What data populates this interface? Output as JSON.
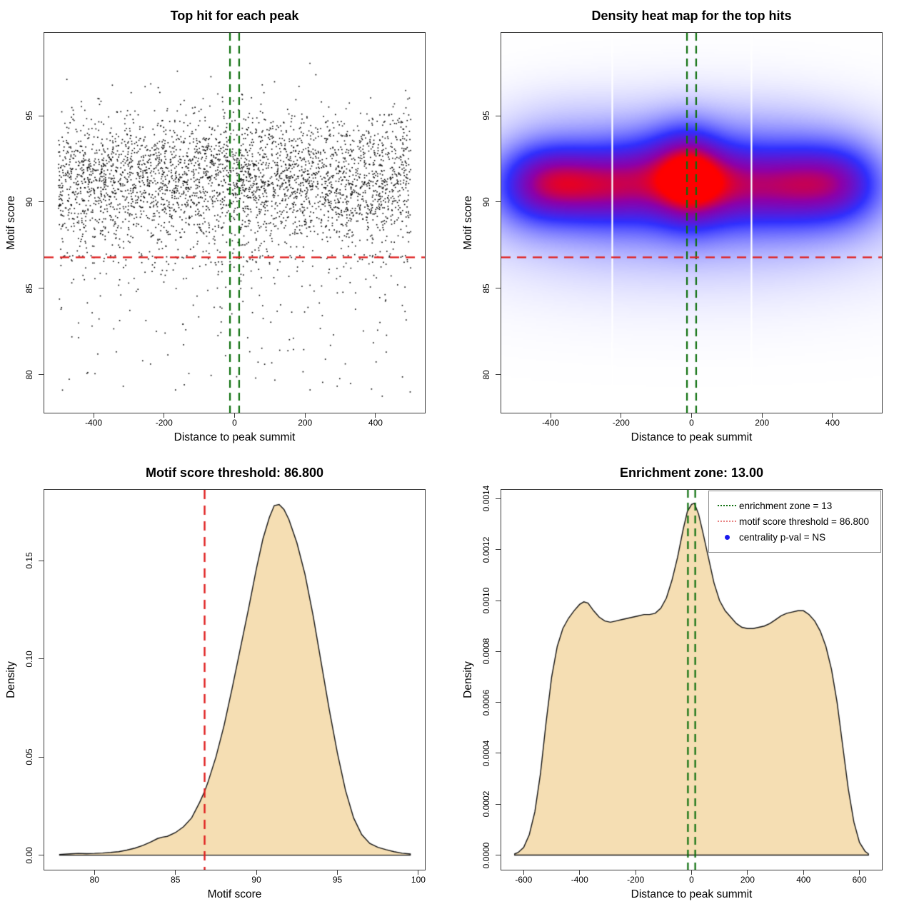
{
  "palette": {
    "background": "#ffffff",
    "box": "#3c3c3c",
    "curve_fill": "#f5deb3",
    "curve_stroke": "#141414",
    "point_color": "#000000",
    "red_line": "#e02020",
    "green_line": "#0b6e0b",
    "heat_white_line": "#ffffff"
  },
  "chart_data": [
    {
      "type": "scatter",
      "title": "Top hit for each peak",
      "xlabel": "Distance to peak summit",
      "ylabel": "Motif score",
      "xlim": [
        -540,
        540
      ],
      "ylim": [
        77.8,
        99.8
      ],
      "xticks": [
        -400,
        -200,
        0,
        200,
        400
      ],
      "xtick_labels": [
        "-400",
        "-200",
        "0",
        "200",
        "400"
      ],
      "yticks": [
        80,
        85,
        90,
        95
      ],
      "ytick_labels": [
        "80",
        "85",
        "90",
        "95"
      ],
      "threshold_line": {
        "y": 86.8
      },
      "enrichment_lines": {
        "x": [
          -13,
          13
        ]
      },
      "points_model": {
        "n": 3800,
        "seed": 7,
        "x_min": -500,
        "x_max": 500,
        "y_mean": 91.25,
        "y_sd": 1.95,
        "y_max": 99.0,
        "y_min": 78.6,
        "tail_frac": 0.065,
        "tail_top": 86.9,
        "tail_span": 8.2,
        "tail_power": 2.2
      }
    },
    {
      "type": "heatmap",
      "title": "Density heat map for the top hits",
      "xlabel": "Distance to peak summit",
      "ylabel": "Motif score",
      "xlim": [
        -540,
        540
      ],
      "ylim": [
        77.8,
        99.8
      ],
      "xticks": [
        -400,
        -200,
        0,
        200,
        400
      ],
      "xtick_labels": [
        "-400",
        "-200",
        "0",
        "200",
        "400"
      ],
      "yticks": [
        80,
        85,
        90,
        95
      ],
      "ytick_labels": [
        "80",
        "85",
        "90",
        "95"
      ],
      "threshold_line": {
        "y": 86.8
      },
      "enrichment_lines": {
        "x": [
          -13,
          13
        ]
      },
      "white_columns": [
        -225,
        170
      ],
      "colormap": [
        [
          0,
          "#ffffff"
        ],
        [
          0.38,
          "#3030ff"
        ],
        [
          0.62,
          "#8e00a8"
        ],
        [
          0.8,
          "#ff0000"
        ],
        [
          1,
          "#ff0000"
        ]
      ],
      "density_model": {
        "blobs": [
          [
            -470,
            91.0,
            80,
            1.6,
            0.95
          ],
          [
            -390,
            91.2,
            80,
            1.5,
            1.05
          ],
          [
            -300,
            91.0,
            80,
            1.5,
            0.9
          ],
          [
            -210,
            91.0,
            80,
            1.6,
            0.82
          ],
          [
            -120,
            91.3,
            80,
            1.7,
            0.9
          ],
          [
            -40,
            91.5,
            65,
            1.9,
            1.1
          ],
          [
            10,
            91.4,
            60,
            1.8,
            1.15
          ],
          [
            80,
            91.1,
            75,
            1.7,
            0.95
          ],
          [
            170,
            91.0,
            85,
            1.6,
            0.8
          ],
          [
            270,
            91.0,
            85,
            1.6,
            0.82
          ],
          [
            360,
            91.1,
            85,
            1.6,
            0.9
          ],
          [
            450,
            91.1,
            80,
            1.6,
            0.95
          ],
          [
            0,
            91.6,
            280,
            2.9,
            0.45
          ],
          [
            -340,
            91.0,
            200,
            2.6,
            0.4
          ],
          [
            340,
            91.0,
            200,
            2.6,
            0.4
          ],
          [
            0,
            89.0,
            460,
            2.0,
            0.28
          ],
          [
            0,
            93.6,
            380,
            1.8,
            0.15
          ],
          [
            0,
            86.5,
            460,
            1.8,
            0.12
          ],
          [
            -380,
            95.3,
            130,
            1.2,
            0.07
          ],
          [
            240,
            94.8,
            160,
            1.3,
            0.06
          ],
          [
            0,
            84.0,
            480,
            2.0,
            0.05
          ]
        ]
      }
    },
    {
      "type": "density",
      "title": "Motif score threshold: 86.800",
      "xlabel": "Motif score",
      "ylabel": "Density",
      "xlim": [
        76.9,
        100.4
      ],
      "ylim": [
        -0.0074,
        0.186
      ],
      "xticks": [
        80,
        85,
        90,
        95,
        100
      ],
      "xtick_labels": [
        "80",
        "85",
        "90",
        "95",
        "100"
      ],
      "yticks": [
        0,
        0.05,
        0.1,
        0.15
      ],
      "ytick_labels": [
        "0.00",
        "0.05",
        "0.10",
        "0.15"
      ],
      "threshold_vline": {
        "x": 86.8
      },
      "curve": [
        [
          77.85,
          0.0004
        ],
        [
          78.5,
          0.0007
        ],
        [
          79,
          0.0009
        ],
        [
          79.5,
          0.0008
        ],
        [
          80,
          0.0009
        ],
        [
          80.5,
          0.0011
        ],
        [
          81,
          0.0014
        ],
        [
          81.5,
          0.0018
        ],
        [
          82,
          0.0026
        ],
        [
          82.5,
          0.0036
        ],
        [
          83,
          0.005
        ],
        [
          83.5,
          0.0068
        ],
        [
          83.9,
          0.0085
        ],
        [
          84.2,
          0.0092
        ],
        [
          84.5,
          0.0096
        ],
        [
          85,
          0.0115
        ],
        [
          85.5,
          0.0145
        ],
        [
          86,
          0.019
        ],
        [
          86.5,
          0.027
        ],
        [
          86.8,
          0.0325
        ],
        [
          87,
          0.037
        ],
        [
          87.5,
          0.05
        ],
        [
          88,
          0.066
        ],
        [
          88.5,
          0.085
        ],
        [
          89,
          0.105
        ],
        [
          89.5,
          0.125
        ],
        [
          90,
          0.146
        ],
        [
          90.4,
          0.161
        ],
        [
          90.8,
          0.172
        ],
        [
          91.1,
          0.178
        ],
        [
          91.4,
          0.1785
        ],
        [
          91.7,
          0.176
        ],
        [
          92,
          0.171
        ],
        [
          92.5,
          0.159
        ],
        [
          93,
          0.143
        ],
        [
          93.5,
          0.122
        ],
        [
          94,
          0.098
        ],
        [
          94.5,
          0.074
        ],
        [
          95,
          0.052
        ],
        [
          95.5,
          0.033
        ],
        [
          96,
          0.019
        ],
        [
          96.5,
          0.0105
        ],
        [
          97,
          0.006
        ],
        [
          97.5,
          0.004
        ],
        [
          98,
          0.0028
        ],
        [
          98.5,
          0.0018
        ],
        [
          99,
          0.001
        ],
        [
          99.5,
          0.0006
        ]
      ]
    },
    {
      "type": "density",
      "title": "Enrichment zone: 13.00",
      "xlabel": "Distance to peak summit",
      "ylabel": "Density",
      "xlim": [
        -680,
        680
      ],
      "ylim": [
        -5.74e-05,
        0.001435
      ],
      "xticks": [
        -600,
        -400,
        -200,
        0,
        200,
        400,
        600
      ],
      "xtick_labels": [
        "-600",
        "-400",
        "-200",
        "0",
        "200",
        "400",
        "600"
      ],
      "yticks": [
        0,
        0.0002,
        0.0004,
        0.0006,
        0.0008,
        0.001,
        0.0012,
        0.0014
      ],
      "ytick_labels": [
        "0.0000",
        "0.0002",
        "0.0004",
        "0.0006",
        "0.0008",
        "0.0010",
        "0.0012",
        "0.0014"
      ],
      "enrichment_lines": {
        "x": [
          -13,
          13
        ]
      },
      "curve": [
        [
          -632,
          5e-06
        ],
        [
          -620,
          1e-05
        ],
        [
          -600,
          3e-05
        ],
        [
          -580,
          8e-05
        ],
        [
          -560,
          0.00017
        ],
        [
          -540,
          0.00032
        ],
        [
          -520,
          0.00052
        ],
        [
          -500,
          0.0007
        ],
        [
          -480,
          0.00082
        ],
        [
          -460,
          0.00089
        ],
        [
          -440,
          0.00093
        ],
        [
          -420,
          0.00096
        ],
        [
          -400,
          0.000985
        ],
        [
          -385,
          0.000995
        ],
        [
          -370,
          0.00099
        ],
        [
          -350,
          0.00096
        ],
        [
          -330,
          0.000935
        ],
        [
          -310,
          0.00092
        ],
        [
          -290,
          0.000915
        ],
        [
          -270,
          0.00092
        ],
        [
          -250,
          0.000925
        ],
        [
          -230,
          0.00093
        ],
        [
          -210,
          0.000935
        ],
        [
          -190,
          0.00094
        ],
        [
          -170,
          0.000945
        ],
        [
          -150,
          0.000945
        ],
        [
          -130,
          0.00095
        ],
        [
          -110,
          0.00097
        ],
        [
          -90,
          0.00101
        ],
        [
          -70,
          0.00108
        ],
        [
          -50,
          0.00117
        ],
        [
          -30,
          0.00128
        ],
        [
          -15,
          0.00135
        ],
        [
          0,
          0.001378
        ],
        [
          10,
          0.001382
        ],
        [
          25,
          0.00134
        ],
        [
          40,
          0.00127
        ],
        [
          60,
          0.00117
        ],
        [
          80,
          0.00107
        ],
        [
          100,
          0.001
        ],
        [
          120,
          0.00096
        ],
        [
          140,
          0.000935
        ],
        [
          160,
          0.00091
        ],
        [
          180,
          0.000895
        ],
        [
          200,
          0.00089
        ],
        [
          220,
          0.00089
        ],
        [
          240,
          0.000895
        ],
        [
          260,
          0.0009
        ],
        [
          280,
          0.00091
        ],
        [
          300,
          0.000925
        ],
        [
          320,
          0.00094
        ],
        [
          340,
          0.00095
        ],
        [
          360,
          0.000955
        ],
        [
          380,
          0.00096
        ],
        [
          400,
          0.00096
        ],
        [
          420,
          0.000945
        ],
        [
          440,
          0.00092
        ],
        [
          460,
          0.00088
        ],
        [
          480,
          0.00082
        ],
        [
          500,
          0.00073
        ],
        [
          520,
          0.0006
        ],
        [
          540,
          0.00043
        ],
        [
          560,
          0.00026
        ],
        [
          580,
          0.00013
        ],
        [
          600,
          5e-05
        ],
        [
          620,
          1.5e-05
        ],
        [
          632,
          5e-06
        ]
      ],
      "legend": {
        "items": [
          {
            "label": "enrichment zone = 13",
            "type": "dotted",
            "color": "#0b6e0b"
          },
          {
            "label": "motif score threshold = 86.800",
            "type": "dotted",
            "color": "#e88080"
          },
          {
            "label": "centrality p-val = NS",
            "type": "dot",
            "color": "#1a1aee"
          }
        ]
      }
    }
  ]
}
